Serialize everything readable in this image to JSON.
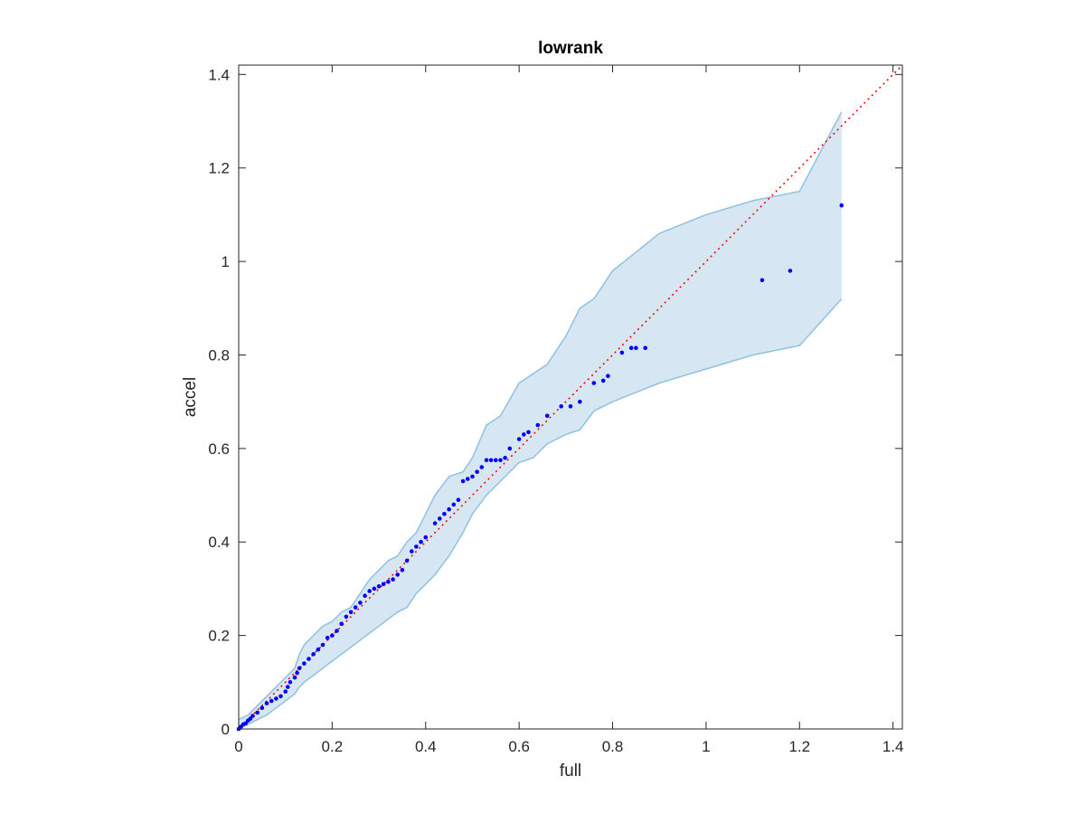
{
  "chart_data": {
    "type": "scatter",
    "title": "lowrank",
    "xlabel": "full",
    "ylabel": "accel",
    "xlim": [
      0,
      1.42
    ],
    "ylim": [
      0,
      1.42
    ],
    "xticks": [
      0,
      0.2,
      0.4,
      0.6,
      0.8,
      1,
      1.2,
      1.4
    ],
    "yticks": [
      0,
      0.2,
      0.4,
      0.6,
      0.8,
      1,
      1.2,
      1.4
    ],
    "xtick_labels": [
      "0",
      "0.2",
      "0.4",
      "0.6",
      "0.8",
      "1",
      "1.2",
      "1.4"
    ],
    "ytick_labels": [
      "0",
      "0.2",
      "0.4",
      "0.6",
      "0.8",
      "1",
      "1.2",
      "1.4"
    ],
    "grid": false,
    "reference_line": {
      "x": [
        0,
        1.42
      ],
      "y": [
        0,
        1.42
      ],
      "style": "dotted",
      "color": "#ff0000"
    },
    "band": {
      "color_fill": "#d6e7f3",
      "color_edge": "#8fc1e0",
      "x": [
        0,
        0.02,
        0.04,
        0.06,
        0.08,
        0.1,
        0.12,
        0.13,
        0.14,
        0.16,
        0.18,
        0.2,
        0.22,
        0.24,
        0.26,
        0.28,
        0.3,
        0.32,
        0.34,
        0.36,
        0.38,
        0.4,
        0.42,
        0.45,
        0.48,
        0.5,
        0.53,
        0.56,
        0.6,
        0.63,
        0.66,
        0.7,
        0.73,
        0.76,
        0.8,
        0.85,
        0.9,
        1.0,
        1.1,
        1.2,
        1.29
      ],
      "upper": [
        0.02,
        0.03,
        0.05,
        0.07,
        0.09,
        0.11,
        0.13,
        0.16,
        0.18,
        0.2,
        0.22,
        0.23,
        0.25,
        0.26,
        0.29,
        0.32,
        0.34,
        0.36,
        0.37,
        0.4,
        0.42,
        0.46,
        0.5,
        0.54,
        0.55,
        0.58,
        0.65,
        0.67,
        0.74,
        0.76,
        0.78,
        0.84,
        0.9,
        0.92,
        0.98,
        1.02,
        1.06,
        1.1,
        1.13,
        1.15,
        1.32
      ],
      "lower": [
        0.0,
        0.01,
        0.02,
        0.03,
        0.045,
        0.06,
        0.075,
        0.09,
        0.1,
        0.115,
        0.13,
        0.145,
        0.16,
        0.175,
        0.19,
        0.205,
        0.22,
        0.235,
        0.25,
        0.26,
        0.29,
        0.31,
        0.33,
        0.37,
        0.42,
        0.46,
        0.5,
        0.53,
        0.57,
        0.58,
        0.61,
        0.63,
        0.64,
        0.68,
        0.7,
        0.72,
        0.74,
        0.77,
        0.8,
        0.82,
        0.92
      ]
    },
    "series": [
      {
        "color": "#0000ff",
        "x": [
          0.0,
          0.005,
          0.01,
          0.015,
          0.02,
          0.025,
          0.03,
          0.04,
          0.05,
          0.06,
          0.07,
          0.08,
          0.09,
          0.1,
          0.105,
          0.11,
          0.12,
          0.125,
          0.13,
          0.14,
          0.15,
          0.16,
          0.17,
          0.18,
          0.19,
          0.2,
          0.21,
          0.22,
          0.23,
          0.24,
          0.25,
          0.26,
          0.27,
          0.28,
          0.29,
          0.3,
          0.31,
          0.32,
          0.33,
          0.34,
          0.35,
          0.36,
          0.37,
          0.38,
          0.39,
          0.4,
          0.42,
          0.43,
          0.44,
          0.45,
          0.46,
          0.47,
          0.48,
          0.49,
          0.5,
          0.51,
          0.52,
          0.53,
          0.54,
          0.55,
          0.56,
          0.57,
          0.58,
          0.6,
          0.61,
          0.62,
          0.64,
          0.66,
          0.69,
          0.71,
          0.73,
          0.76,
          0.78,
          0.79,
          0.82,
          0.84,
          0.85,
          0.87,
          1.12,
          1.18,
          1.29
        ],
        "y": [
          0.0,
          0.005,
          0.01,
          0.012,
          0.018,
          0.022,
          0.028,
          0.035,
          0.045,
          0.055,
          0.06,
          0.065,
          0.07,
          0.08,
          0.09,
          0.1,
          0.11,
          0.12,
          0.13,
          0.14,
          0.15,
          0.16,
          0.17,
          0.18,
          0.195,
          0.2,
          0.21,
          0.225,
          0.24,
          0.25,
          0.26,
          0.27,
          0.285,
          0.295,
          0.3,
          0.305,
          0.31,
          0.315,
          0.32,
          0.33,
          0.34,
          0.36,
          0.38,
          0.39,
          0.4,
          0.41,
          0.44,
          0.45,
          0.46,
          0.47,
          0.48,
          0.49,
          0.53,
          0.535,
          0.54,
          0.55,
          0.56,
          0.575,
          0.575,
          0.575,
          0.575,
          0.58,
          0.6,
          0.62,
          0.63,
          0.635,
          0.65,
          0.67,
          0.69,
          0.69,
          0.7,
          0.74,
          0.745,
          0.755,
          0.805,
          0.815,
          0.815,
          0.815,
          0.96,
          0.98,
          1.12
        ]
      }
    ]
  }
}
